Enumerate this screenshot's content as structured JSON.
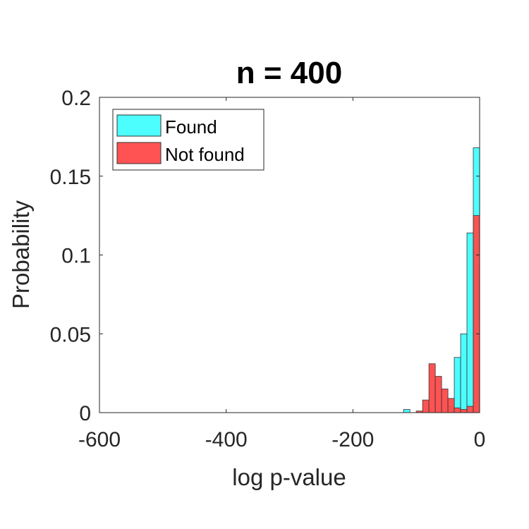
{
  "chart_data": {
    "type": "bar",
    "title": "n = 400",
    "xlabel": "log p-value",
    "ylabel": "Probability",
    "xlim": [
      -600,
      0
    ],
    "ylim": [
      0,
      0.2
    ],
    "xticks": [
      -600,
      -400,
      -200,
      0
    ],
    "xtick_labels": [
      "-600",
      "-400",
      "-200",
      "0"
    ],
    "yticks": [
      0,
      0.05,
      0.1,
      0.15,
      0.2
    ],
    "ytick_labels": [
      "0",
      "0.05",
      "0.1",
      "0.15",
      "0.2"
    ],
    "grid": false,
    "legend_position": "top-left",
    "bin_width": 10,
    "series": [
      {
        "name": "Found",
        "color": "#4dfefe",
        "alpha": 1.0,
        "bins": [
          {
            "x0": -120,
            "x1": -110,
            "value": 0.002
          },
          {
            "x0": -50,
            "x1": -40,
            "value": 0.004
          },
          {
            "x0": -40,
            "x1": -30,
            "value": 0.035
          },
          {
            "x0": -30,
            "x1": -20,
            "value": 0.05
          },
          {
            "x0": -20,
            "x1": -10,
            "value": 0.114
          },
          {
            "x0": -10,
            "x1": 0,
            "value": 0.168
          }
        ]
      },
      {
        "name": "Not found",
        "color": "#ff4a4a",
        "alpha": 0.95,
        "bins": [
          {
            "x0": -100,
            "x1": -90,
            "value": 0.001
          },
          {
            "x0": -90,
            "x1": -80,
            "value": 0.008
          },
          {
            "x0": -80,
            "x1": -70,
            "value": 0.031
          },
          {
            "x0": -70,
            "x1": -60,
            "value": 0.023
          },
          {
            "x0": -60,
            "x1": -50,
            "value": 0.015
          },
          {
            "x0": -50,
            "x1": -40,
            "value": 0.009
          },
          {
            "x0": -40,
            "x1": -30,
            "value": 0.003
          },
          {
            "x0": -30,
            "x1": -20,
            "value": 0.002
          },
          {
            "x0": -20,
            "x1": -10,
            "value": 0.004
          },
          {
            "x0": -10,
            "x1": 0,
            "value": 0.125
          }
        ]
      }
    ]
  }
}
